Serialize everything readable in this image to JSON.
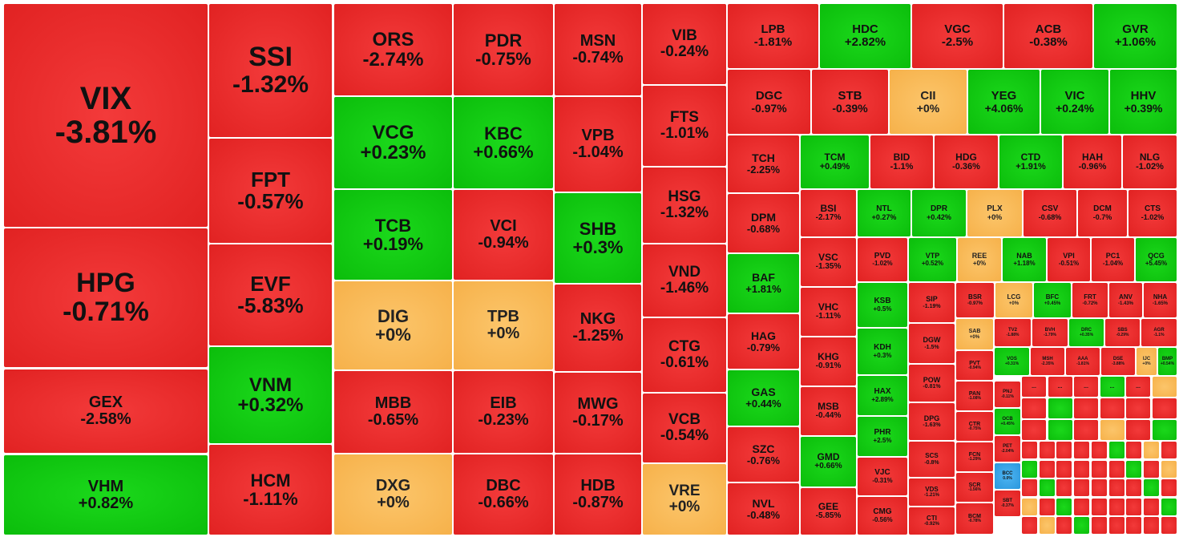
{
  "colors": {
    "down": "#e12222",
    "up": "#0bbd0b",
    "flat": "#f6b14a",
    "blue": "#2a97dd"
  },
  "more_marker": "...",
  "tiles": [
    {
      "ticker": "VIX",
      "change": "-3.81%",
      "color": "red"
    },
    {
      "ticker": "HPG",
      "change": "-0.71%",
      "color": "red"
    },
    {
      "ticker": "GEX",
      "change": "-2.58%",
      "color": "red"
    },
    {
      "ticker": "VHM",
      "change": "+0.82%",
      "color": "green"
    },
    {
      "ticker": "SSI",
      "change": "-1.32%",
      "color": "red"
    },
    {
      "ticker": "FPT",
      "change": "-0.57%",
      "color": "red"
    },
    {
      "ticker": "EVF",
      "change": "-5.83%",
      "color": "red"
    },
    {
      "ticker": "VNM",
      "change": "+0.32%",
      "color": "green"
    },
    {
      "ticker": "HCM",
      "change": "-1.11%",
      "color": "red"
    },
    {
      "ticker": "ORS",
      "change": "-2.74%",
      "color": "red"
    },
    {
      "ticker": "VCG",
      "change": "+0.23%",
      "color": "green"
    },
    {
      "ticker": "TCB",
      "change": "+0.19%",
      "color": "green"
    },
    {
      "ticker": "DIG",
      "change": "+0%",
      "color": "amber"
    },
    {
      "ticker": "MBB",
      "change": "-0.65%",
      "color": "red"
    },
    {
      "ticker": "DXG",
      "change": "+0%",
      "color": "amber"
    },
    {
      "ticker": "PDR",
      "change": "-0.75%",
      "color": "red"
    },
    {
      "ticker": "KBC",
      "change": "+0.66%",
      "color": "green"
    },
    {
      "ticker": "VCI",
      "change": "-0.94%",
      "color": "red"
    },
    {
      "ticker": "TPB",
      "change": "+0%",
      "color": "amber"
    },
    {
      "ticker": "EIB",
      "change": "-0.23%",
      "color": "red"
    },
    {
      "ticker": "DBC",
      "change": "-0.66%",
      "color": "red"
    },
    {
      "ticker": "MSN",
      "change": "-0.74%",
      "color": "red"
    },
    {
      "ticker": "VPB",
      "change": "-1.04%",
      "color": "red"
    },
    {
      "ticker": "SHB",
      "change": "+0.3%",
      "color": "green"
    },
    {
      "ticker": "NKG",
      "change": "-1.25%",
      "color": "red"
    },
    {
      "ticker": "MWG",
      "change": "-0.17%",
      "color": "red"
    },
    {
      "ticker": "HDB",
      "change": "-0.87%",
      "color": "red"
    },
    {
      "ticker": "VIB",
      "change": "-0.24%",
      "color": "red"
    },
    {
      "ticker": "FTS",
      "change": "-1.01%",
      "color": "red"
    },
    {
      "ticker": "HSG",
      "change": "-1.32%",
      "color": "red"
    },
    {
      "ticker": "VND",
      "change": "-1.46%",
      "color": "red"
    },
    {
      "ticker": "CTG",
      "change": "-0.61%",
      "color": "red"
    },
    {
      "ticker": "VCB",
      "change": "-0.54%",
      "color": "red"
    },
    {
      "ticker": "VRE",
      "change": "+0%",
      "color": "amber"
    },
    {
      "ticker": "LPB",
      "change": "-1.81%",
      "color": "red"
    },
    {
      "ticker": "HDC",
      "change": "+2.82%",
      "color": "green"
    },
    {
      "ticker": "VGC",
      "change": "-2.5%",
      "color": "red"
    },
    {
      "ticker": "ACB",
      "change": "-0.38%",
      "color": "red"
    },
    {
      "ticker": "GVR",
      "change": "+1.06%",
      "color": "green"
    },
    {
      "ticker": "DGC",
      "change": "-0.97%",
      "color": "red"
    },
    {
      "ticker": "STB",
      "change": "-0.39%",
      "color": "red"
    },
    {
      "ticker": "CII",
      "change": "+0%",
      "color": "amber"
    },
    {
      "ticker": "YEG",
      "change": "+4.06%",
      "color": "green"
    },
    {
      "ticker": "VIC",
      "change": "+0.24%",
      "color": "green"
    },
    {
      "ticker": "HHV",
      "change": "+0.39%",
      "color": "green"
    },
    {
      "ticker": "TCH",
      "change": "-2.25%",
      "color": "red"
    },
    {
      "ticker": "TCM",
      "change": "+0.49%",
      "color": "green"
    },
    {
      "ticker": "BID",
      "change": "-1.1%",
      "color": "red"
    },
    {
      "ticker": "HDG",
      "change": "-0.36%",
      "color": "red"
    },
    {
      "ticker": "CTD",
      "change": "+1.91%",
      "color": "green"
    },
    {
      "ticker": "HAH",
      "change": "-0.96%",
      "color": "red"
    },
    {
      "ticker": "NLG",
      "change": "-1.02%",
      "color": "red"
    },
    {
      "ticker": "DPM",
      "change": "-0.68%",
      "color": "red"
    },
    {
      "ticker": "BAF",
      "change": "+1.81%",
      "color": "green"
    },
    {
      "ticker": "HAG",
      "change": "-0.79%",
      "color": "red"
    },
    {
      "ticker": "GAS",
      "change": "+0.44%",
      "color": "green"
    },
    {
      "ticker": "SZC",
      "change": "-0.76%",
      "color": "red"
    },
    {
      "ticker": "NVL",
      "change": "-0.48%",
      "color": "red"
    },
    {
      "ticker": "BSI",
      "change": "-2.17%",
      "color": "red"
    },
    {
      "ticker": "VSC",
      "change": "-1.35%",
      "color": "red"
    },
    {
      "ticker": "VHC",
      "change": "-1.11%",
      "color": "red"
    },
    {
      "ticker": "KHG",
      "change": "-0.91%",
      "color": "red"
    },
    {
      "ticker": "MSB",
      "change": "-0.44%",
      "color": "red"
    },
    {
      "ticker": "GMD",
      "change": "+0.66%",
      "color": "green"
    },
    {
      "ticker": "GEE",
      "change": "-5.85%",
      "color": "red"
    },
    {
      "ticker": "NTL",
      "change": "+0.27%",
      "color": "green"
    },
    {
      "ticker": "DPR",
      "change": "+0.42%",
      "color": "green"
    },
    {
      "ticker": "PLX",
      "change": "+0%",
      "color": "amber"
    },
    {
      "ticker": "CSV",
      "change": "-0.68%",
      "color": "red"
    },
    {
      "ticker": "DCM",
      "change": "-0.7%",
      "color": "red"
    },
    {
      "ticker": "CTS",
      "change": "-1.02%",
      "color": "red"
    },
    {
      "ticker": "PVD",
      "change": "-1.02%",
      "color": "red"
    },
    {
      "ticker": "VTP",
      "change": "+0.52%",
      "color": "green"
    },
    {
      "ticker": "REE",
      "change": "+0%",
      "color": "amber"
    },
    {
      "ticker": "NAB",
      "change": "+1.18%",
      "color": "green"
    },
    {
      "ticker": "VPI",
      "change": "-0.51%",
      "color": "red"
    },
    {
      "ticker": "PC1",
      "change": "-1.04%",
      "color": "red"
    },
    {
      "ticker": "QCG",
      "change": "+5.45%",
      "color": "green"
    },
    {
      "ticker": "KSB",
      "change": "+0.5%",
      "color": "green"
    },
    {
      "ticker": "KDH",
      "change": "+0.3%",
      "color": "green"
    },
    {
      "ticker": "HAX",
      "change": "+2.89%",
      "color": "green"
    },
    {
      "ticker": "PHR",
      "change": "+2.5%",
      "color": "green"
    },
    {
      "ticker": "SIP",
      "change": "-1.19%",
      "color": "red"
    },
    {
      "ticker": "DGW",
      "change": "-1.5%",
      "color": "red"
    },
    {
      "ticker": "POW",
      "change": "-0.81%",
      "color": "red"
    },
    {
      "ticker": "DPG",
      "change": "-1.63%",
      "color": "red"
    },
    {
      "ticker": "SCS",
      "change": "-0.8%",
      "color": "red"
    },
    {
      "ticker": "VDS",
      "change": "-1.21%",
      "color": "red"
    },
    {
      "ticker": "CTI",
      "change": "-0.92%",
      "color": "red"
    },
    {
      "ticker": "VJC",
      "change": "-0.31%",
      "color": "red"
    },
    {
      "ticker": "CMG",
      "change": "-0.56%",
      "color": "red"
    },
    {
      "ticker": "BSR",
      "change": "-0.97%",
      "color": "red"
    },
    {
      "ticker": "LCG",
      "change": "+0%",
      "color": "amber"
    },
    {
      "ticker": "BFC",
      "change": "+0.45%",
      "color": "green"
    },
    {
      "ticker": "FRT",
      "change": "-0.72%",
      "color": "red"
    },
    {
      "ticker": "ANV",
      "change": "-1.43%",
      "color": "red"
    },
    {
      "ticker": "NHA",
      "change": "-1.65%",
      "color": "red"
    },
    {
      "ticker": "SAB",
      "change": "+0%",
      "color": "amber"
    },
    {
      "ticker": "TV2",
      "change": "-1.88%",
      "color": "red"
    },
    {
      "ticker": "BVH",
      "change": "-1.79%",
      "color": "red"
    },
    {
      "ticker": "DRC",
      "change": "+0.35%",
      "color": "green"
    },
    {
      "ticker": "SBS",
      "change": "-0.29%",
      "color": "red"
    },
    {
      "ticker": "AGR",
      "change": "-1.1%",
      "color": "red"
    },
    {
      "ticker": "VOS",
      "change": "+0.31%",
      "color": "green"
    },
    {
      "ticker": "MSH",
      "change": "-2.35%",
      "color": "red"
    },
    {
      "ticker": "AAA",
      "change": "-1.81%",
      "color": "red"
    },
    {
      "ticker": "DSE",
      "change": "-3.88%",
      "color": "red"
    },
    {
      "ticker": "IJC",
      "change": "+0%",
      "color": "amber"
    },
    {
      "ticker": "BMP",
      "change": "+0.54%",
      "color": "green"
    },
    {
      "ticker": "PVT",
      "change": "-0.94%",
      "color": "red"
    },
    {
      "ticker": "PAN",
      "change": "-1.08%",
      "color": "red"
    },
    {
      "ticker": "CTR",
      "change": "-0.75%",
      "color": "red"
    },
    {
      "ticker": "FCN",
      "change": "-1.29%",
      "color": "red"
    },
    {
      "ticker": "SCR",
      "change": "-1.56%",
      "color": "red"
    },
    {
      "ticker": "BCM",
      "change": "-0.78%",
      "color": "red"
    },
    {
      "ticker": "PNJ",
      "change": "-0.11%",
      "color": "red"
    },
    {
      "ticker": "OCB",
      "change": "+0.45%",
      "color": "green"
    },
    {
      "ticker": "PET",
      "change": "-2.04%",
      "color": "red"
    },
    {
      "ticker": "BCC",
      "change": "0.0%",
      "color": "blue"
    },
    {
      "ticker": "SBT",
      "change": "-0.37%",
      "color": "red"
    }
  ]
}
